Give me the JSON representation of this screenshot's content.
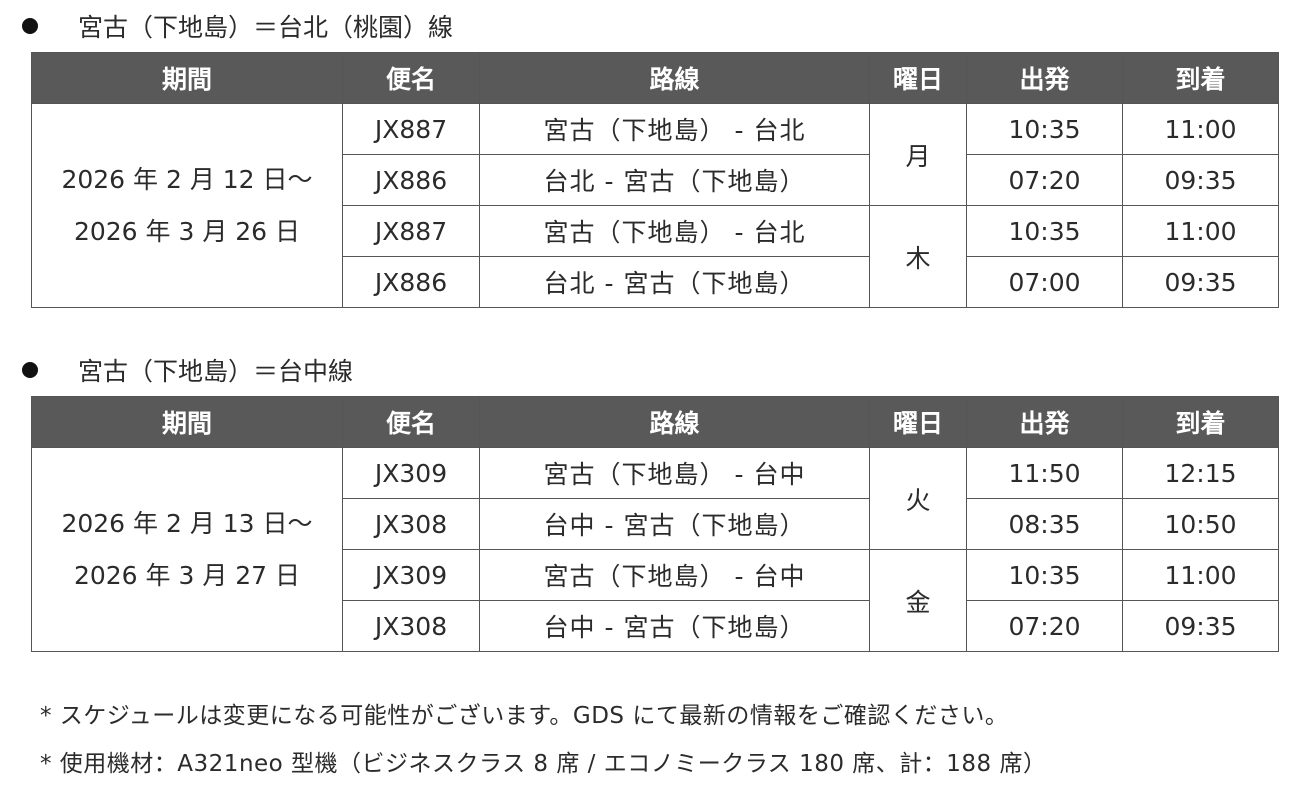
{
  "headers": [
    "期間",
    "便名",
    "路線",
    "曜日",
    "出発",
    "到着"
  ],
  "sections": [
    {
      "title": "宮古（下地島）＝台北（桃園）線",
      "period": [
        "2026 年 2 月 12 日～",
        "2026 年 3 月 26 日"
      ],
      "groups": [
        {
          "day": "月",
          "flights": [
            {
              "flight": "JX887",
              "route": "宮古（下地島） - 台北",
              "dep": "10:35",
              "arr": "11:00"
            },
            {
              "flight": "JX886",
              "route": "台北 - 宮古（下地島）",
              "dep": "07:20",
              "arr": "09:35"
            }
          ]
        },
        {
          "day": "木",
          "flights": [
            {
              "flight": "JX887",
              "route": "宮古（下地島） - 台北",
              "dep": "10:35",
              "arr": "11:00"
            },
            {
              "flight": "JX886",
              "route": "台北 - 宮古（下地島）",
              "dep": "07:00",
              "arr": "09:35"
            }
          ]
        }
      ]
    },
    {
      "title": "宮古（下地島）＝台中線",
      "period": [
        "2026 年 2 月 13 日～",
        "2026 年 3 月 27 日"
      ],
      "groups": [
        {
          "day": "火",
          "flights": [
            {
              "flight": "JX309",
              "route": "宮古（下地島） - 台中",
              "dep": "11:50",
              "arr": "12:15"
            },
            {
              "flight": "JX308",
              "route": "台中 - 宮古（下地島）",
              "dep": "08:35",
              "arr": "10:50"
            }
          ]
        },
        {
          "day": "金",
          "flights": [
            {
              "flight": "JX309",
              "route": "宮古（下地島） - 台中",
              "dep": "10:35",
              "arr": "11:00"
            },
            {
              "flight": "JX308",
              "route": "台中 - 宮古（下地島）",
              "dep": "07:20",
              "arr": "09:35"
            }
          ]
        }
      ]
    }
  ],
  "notes": [
    "*  スケジュールは変更になる可能性がございます。GDS にて最新の情報をご確認ください。",
    "*  使用機材：A321neo 型機（ビジネスクラス 8 席 / エコノミークラス 180 席、計：188 席）"
  ],
  "colors": {
    "header_bg": "#595959",
    "border": "#555555"
  }
}
